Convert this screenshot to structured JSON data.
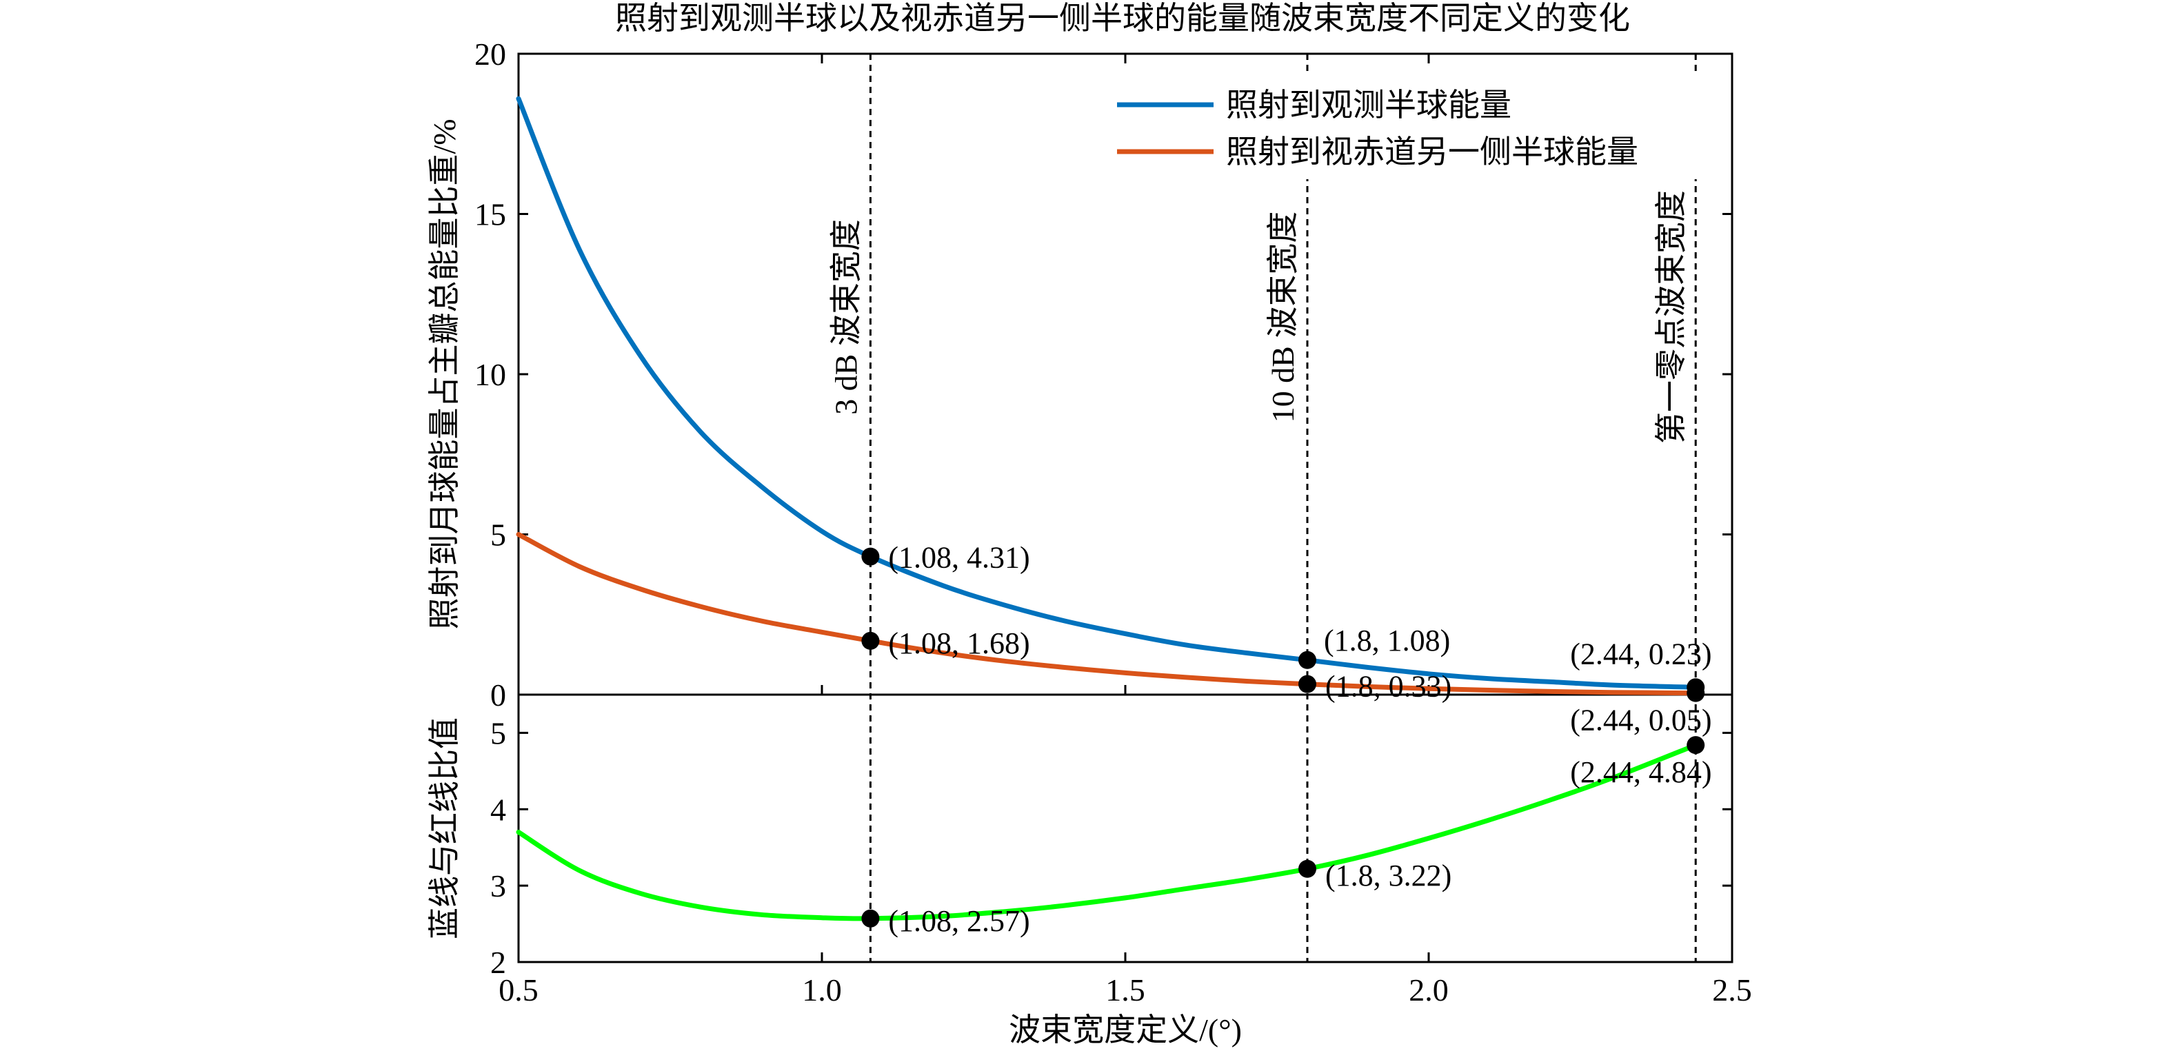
{
  "chart_data": {
    "title": "照射到观测半球以及视赤道另一侧半球的能量随波束宽度不同定义的变化",
    "xlabel": "波束宽度定义/(°)",
    "xlim": [
      0.5,
      2.5
    ],
    "x_ticks": [
      "0.5",
      "1.0",
      "1.5",
      "2.0",
      "2.5"
    ],
    "x_tick_values": [
      0.5,
      1.0,
      1.5,
      2.0,
      2.5
    ],
    "panels": [
      {
        "type": "line",
        "ylabel": "照射到月球能量占主瓣总能量比重/%",
        "ylim": [
          0,
          20
        ],
        "y_ticks": [
          "0",
          "5",
          "10",
          "15",
          "20"
        ],
        "y_tick_values": [
          0,
          5,
          10,
          15,
          20
        ],
        "legend_position": "top-right",
        "series": [
          {
            "name": "照射到观测半球能量",
            "color": "#0072BD",
            "x": [
              0.5,
              0.6,
              0.7,
              0.8,
              0.9,
              1.0,
              1.08,
              1.2,
              1.3,
              1.4,
              1.5,
              1.6,
              1.7,
              1.8,
              1.9,
              2.0,
              2.1,
              2.2,
              2.3,
              2.44
            ],
            "y": [
              18.6,
              13.9,
              10.6,
              8.2,
              6.5,
              5.1,
              4.31,
              3.4,
              2.8,
              2.3,
              1.9,
              1.55,
              1.3,
              1.08,
              0.85,
              0.65,
              0.5,
              0.4,
              0.3,
              0.23
            ]
          },
          {
            "name": "照射到视赤道另一侧半球能量",
            "color": "#D95319",
            "x": [
              0.5,
              0.6,
              0.7,
              0.8,
              0.9,
              1.0,
              1.08,
              1.2,
              1.3,
              1.4,
              1.5,
              1.6,
              1.7,
              1.8,
              1.9,
              2.0,
              2.1,
              2.2,
              2.3,
              2.44
            ],
            "y": [
              5.0,
              4.0,
              3.3,
              2.75,
              2.3,
              1.95,
              1.68,
              1.3,
              1.05,
              0.85,
              0.68,
              0.54,
              0.42,
              0.33,
              0.25,
              0.19,
              0.14,
              0.1,
              0.07,
              0.05
            ]
          }
        ],
        "points": [
          {
            "x": 1.08,
            "y": 4.31,
            "label": "(1.08, 4.31)"
          },
          {
            "x": 1.08,
            "y": 1.68,
            "label": "(1.08, 1.68)"
          },
          {
            "x": 1.8,
            "y": 1.08,
            "label": "(1.8, 1.08)"
          },
          {
            "x": 1.8,
            "y": 0.33,
            "label": "(1.8, 0.33)"
          },
          {
            "x": 2.44,
            "y": 0.23,
            "label": "(2.44, 0.23)"
          },
          {
            "x": 2.44,
            "y": 0.05,
            "label": "(2.44, 0.05)"
          }
        ]
      },
      {
        "type": "line",
        "ylabel": "蓝线与红线比值",
        "ylim": [
          2,
          5.5
        ],
        "y_ticks": [
          "2",
          "3",
          "4",
          "5"
        ],
        "y_tick_values": [
          2,
          3,
          4,
          5
        ],
        "series": [
          {
            "color": "#00FF00",
            "x": [
              0.5,
              0.6,
              0.7,
              0.8,
              0.9,
              1.0,
              1.08,
              1.2,
              1.3,
              1.4,
              1.5,
              1.6,
              1.7,
              1.8,
              1.9,
              2.0,
              2.1,
              2.2,
              2.3,
              2.44
            ],
            "y": [
              3.7,
              3.2,
              2.9,
              2.72,
              2.62,
              2.58,
              2.57,
              2.6,
              2.66,
              2.74,
              2.84,
              2.96,
              3.08,
              3.22,
              3.4,
              3.62,
              3.86,
              4.12,
              4.4,
              4.84
            ]
          }
        ],
        "points": [
          {
            "x": 1.08,
            "y": 2.57,
            "label": "(1.08, 2.57)"
          },
          {
            "x": 1.8,
            "y": 3.22,
            "label": "(1.8, 3.22)"
          },
          {
            "x": 2.44,
            "y": 4.84,
            "label": "(2.44, 4.84)"
          }
        ]
      }
    ],
    "vertical_lines": [
      {
        "x": 1.08,
        "label": "3 dB 波束宽度"
      },
      {
        "x": 1.8,
        "label": "10 dB 波束宽度"
      },
      {
        "x": 2.44,
        "label": "第一零点波束宽度"
      }
    ]
  }
}
